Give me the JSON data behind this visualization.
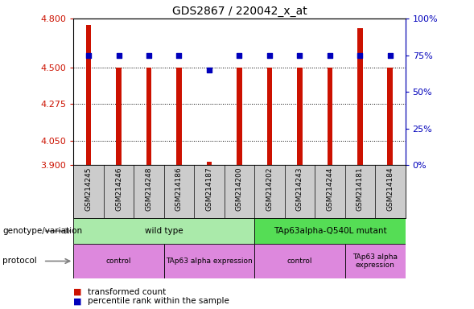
{
  "title": "GDS2867 / 220042_x_at",
  "samples": [
    "GSM214245",
    "GSM214246",
    "GSM214248",
    "GSM214186",
    "GSM214187",
    "GSM214200",
    "GSM214202",
    "GSM214243",
    "GSM214244",
    "GSM214181",
    "GSM214184"
  ],
  "red_values": [
    4.76,
    4.5,
    4.5,
    4.5,
    3.92,
    4.5,
    4.5,
    4.5,
    4.5,
    4.74,
    4.5
  ],
  "blue_values": [
    75,
    75,
    75,
    75,
    65,
    75,
    75,
    75,
    75,
    75,
    75
  ],
  "ylim_left": [
    3.9,
    4.8
  ],
  "ylim_right": [
    0,
    100
  ],
  "yticks_left": [
    3.9,
    4.05,
    4.275,
    4.5,
    4.8
  ],
  "yticks_right": [
    0,
    25,
    50,
    75,
    100
  ],
  "hlines": [
    4.5,
    4.275,
    4.05
  ],
  "genotype_groups": [
    {
      "text": "wild type",
      "start": 0,
      "end": 5,
      "color": "#aaeaaa"
    },
    {
      "text": "TAp63alpha-Q540L mutant",
      "start": 6,
      "end": 10,
      "color": "#55dd55"
    }
  ],
  "protocol_groups": [
    {
      "text": "control",
      "start": 0,
      "end": 2,
      "color": "#dd88dd"
    },
    {
      "text": "TAp63 alpha expression",
      "start": 3,
      "end": 5,
      "color": "#dd88dd"
    },
    {
      "text": "control",
      "start": 6,
      "end": 8,
      "color": "#dd88dd"
    },
    {
      "text": "TAp63 alpha\nexpression",
      "start": 9,
      "end": 10,
      "color": "#dd88dd"
    }
  ],
  "bar_color": "#cc1100",
  "dot_color": "#0000bb",
  "bg_color": "#ffffff",
  "tick_color_left": "#cc1100",
  "tick_color_right": "#0000bb",
  "bar_width": 0.18,
  "dot_size": 18,
  "sample_bg_color": "#cccccc",
  "geno_label": "genotype/variation",
  "proto_label": "protocol",
  "legend_red": "transformed count",
  "legend_blue": "percentile rank within the sample"
}
